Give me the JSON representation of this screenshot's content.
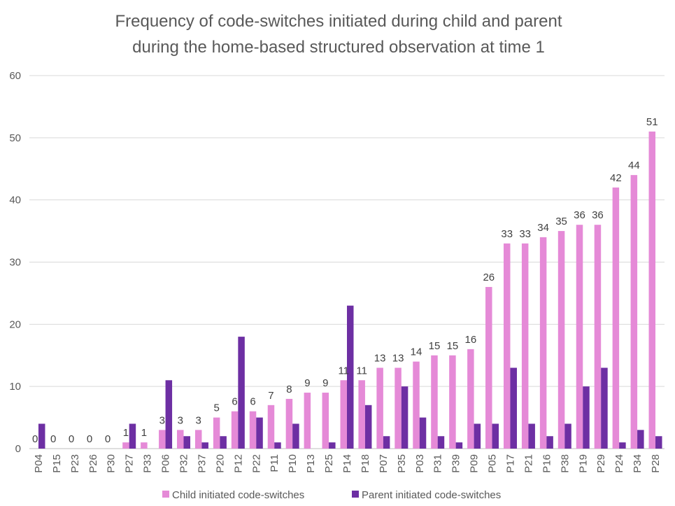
{
  "chart_data": {
    "type": "bar",
    "title_lines": [
      "Frequency of code-switches initiated during child and parent",
      "during the home-based structured observation at time 1"
    ],
    "xlabel": "",
    "ylabel": "",
    "ylim": [
      0,
      60
    ],
    "yticks": [
      "0",
      "10",
      "20",
      "30",
      "40",
      "50",
      "60"
    ],
    "grid": true,
    "legend_position": "bottom",
    "categories": [
      "P04",
      "P15",
      "P23",
      "P26",
      "P30",
      "P27",
      "P33",
      "P06",
      "P32",
      "P37",
      "P20",
      "P12",
      "P22",
      "P11",
      "P10",
      "P13",
      "P25",
      "P14",
      "P18",
      "P07",
      "P35",
      "P03",
      "P31",
      "P39",
      "P09",
      "P05",
      "P17",
      "P21",
      "P16",
      "P38",
      "P19",
      "P29",
      "P24",
      "P34",
      "P28"
    ],
    "series": [
      {
        "name": "Child initiated code-switches",
        "color": "#e58ad7",
        "values": [
          0,
          0,
          0,
          0,
          0,
          1,
          1,
          3,
          3,
          3,
          5,
          6,
          6,
          7,
          8,
          9,
          9,
          11,
          11,
          13,
          13,
          14,
          15,
          15,
          16,
          26,
          33,
          33,
          34,
          35,
          36,
          36,
          42,
          44,
          51
        ],
        "data_labels": [
          "0",
          "0",
          "0",
          "0",
          "0",
          "1",
          "1",
          "3",
          "3",
          "3",
          "5",
          "6",
          "6",
          "7",
          "8",
          "9",
          "9",
          "11",
          "11",
          "13",
          "13",
          "14",
          "15",
          "15",
          "16",
          "26",
          "33",
          "33",
          "34",
          "35",
          "36",
          "36",
          "42",
          "44",
          "51"
        ]
      },
      {
        "name": "Parent initiated code-switches",
        "color": "#6d2fa3",
        "values": [
          4,
          0,
          0,
          0,
          0,
          4,
          0,
          11,
          2,
          1,
          2,
          18,
          5,
          1,
          4,
          0,
          1,
          23,
          7,
          2,
          10,
          5,
          2,
          1,
          4,
          4,
          13,
          4,
          2,
          4,
          10,
          13,
          1,
          3,
          2
        ]
      }
    ]
  }
}
